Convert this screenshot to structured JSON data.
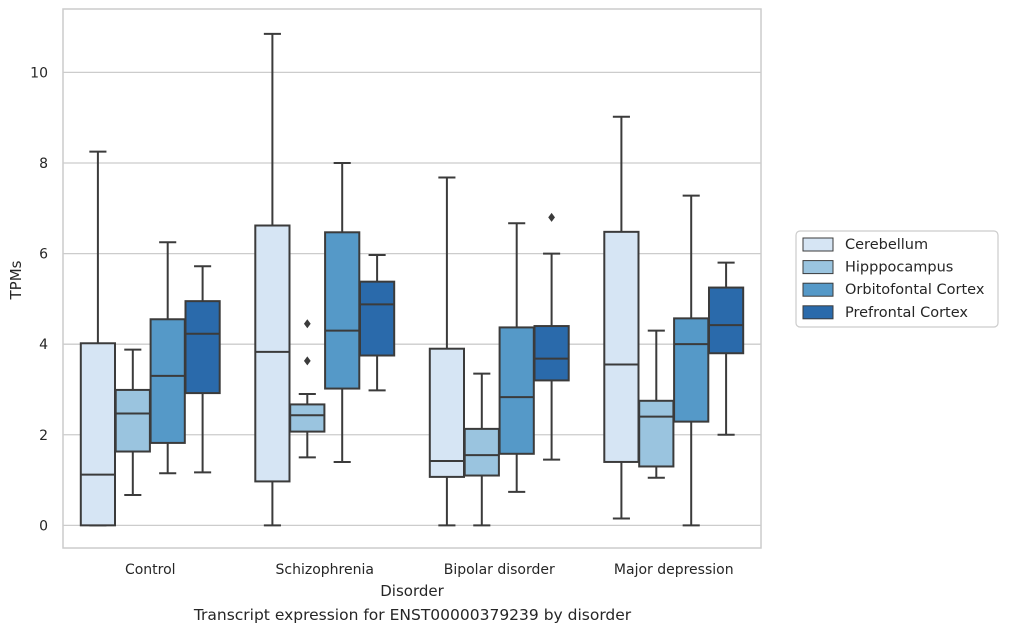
{
  "caption": "Transcript expression for ENST00000379239 by disorder",
  "chart_data": {
    "type": "box",
    "xlabel": "Disorder",
    "ylabel": "TPMs",
    "ylim": [
      -0.5,
      11.4
    ],
    "yticks": [
      0,
      2,
      4,
      6,
      8,
      10
    ],
    "grid": "horizontal",
    "legend_position": "right",
    "categories": [
      "Control",
      "Schizophrenia",
      "Bipolar disorder",
      "Major depression"
    ],
    "series": [
      {
        "name": "Cerebellum",
        "color": "#d6e5f4",
        "boxes": [
          {
            "min": 0.0,
            "q1": 0.0,
            "median": 1.12,
            "q3": 4.02,
            "max": 8.25,
            "outliers": []
          },
          {
            "min": 0.0,
            "q1": 0.97,
            "median": 3.83,
            "q3": 6.62,
            "max": 10.85,
            "outliers": []
          },
          {
            "min": 0.0,
            "q1": 1.07,
            "median": 1.42,
            "q3": 3.9,
            "max": 7.68,
            "outliers": []
          },
          {
            "min": 0.15,
            "q1": 1.4,
            "median": 3.55,
            "q3": 6.48,
            "max": 9.02,
            "outliers": []
          }
        ]
      },
      {
        "name": "Hipppocampus",
        "color": "#9ac4df",
        "boxes": [
          {
            "min": 0.67,
            "q1": 1.63,
            "median": 2.47,
            "q3": 2.99,
            "max": 3.88,
            "outliers": []
          },
          {
            "min": 1.5,
            "q1": 2.07,
            "median": 2.43,
            "q3": 2.67,
            "max": 2.9,
            "outliers": [
              3.63,
              4.45
            ]
          },
          {
            "min": 0.0,
            "q1": 1.1,
            "median": 1.55,
            "q3": 2.13,
            "max": 3.35,
            "outliers": []
          },
          {
            "min": 1.05,
            "q1": 1.3,
            "median": 2.4,
            "q3": 2.75,
            "max": 4.3,
            "outliers": []
          }
        ]
      },
      {
        "name": "Orbitofontal Cortex",
        "color": "#5599c8",
        "boxes": [
          {
            "min": 1.15,
            "q1": 1.82,
            "median": 3.3,
            "q3": 4.55,
            "max": 6.25,
            "outliers": []
          },
          {
            "min": 1.4,
            "q1": 3.02,
            "median": 4.3,
            "q3": 6.47,
            "max": 8.0,
            "outliers": []
          },
          {
            "min": 0.74,
            "q1": 1.58,
            "median": 2.83,
            "q3": 4.37,
            "max": 6.67,
            "outliers": []
          },
          {
            "min": 0.0,
            "q1": 2.29,
            "median": 4.0,
            "q3": 4.57,
            "max": 7.28,
            "outliers": []
          }
        ]
      },
      {
        "name": "Prefrontal Cortex",
        "color": "#2a6aab",
        "boxes": [
          {
            "min": 1.17,
            "q1": 2.92,
            "median": 4.23,
            "q3": 4.95,
            "max": 5.72,
            "outliers": []
          },
          {
            "min": 2.98,
            "q1": 3.75,
            "median": 4.88,
            "q3": 5.38,
            "max": 5.97,
            "outliers": []
          },
          {
            "min": 1.45,
            "q1": 3.2,
            "median": 3.68,
            "q3": 4.4,
            "max": 6.0,
            "outliers": [
              6.8
            ]
          },
          {
            "min": 2.0,
            "q1": 3.8,
            "median": 4.42,
            "q3": 5.25,
            "max": 5.8,
            "outliers": []
          }
        ]
      }
    ]
  }
}
